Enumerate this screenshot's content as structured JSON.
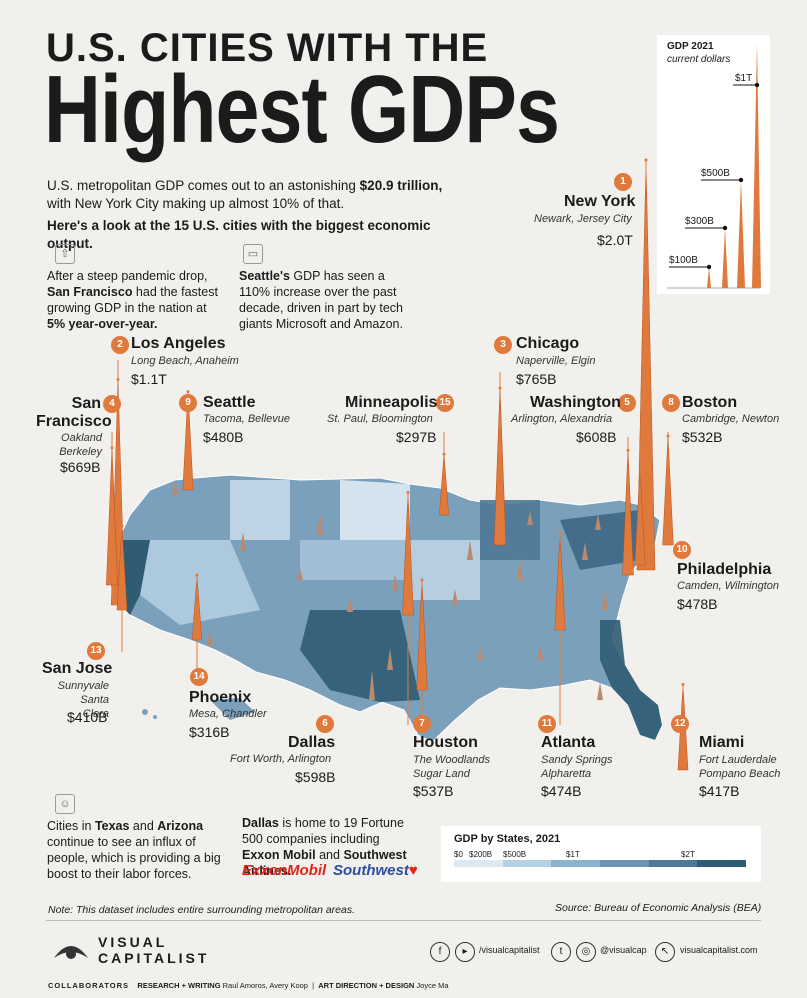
{
  "title": {
    "line1": "U.S. CITIES WITH THE",
    "line2": "Highest GDPs"
  },
  "intro": {
    "p1_a": "U.S. metropolitan GDP comes out to an astonishing ",
    "p1_b": "$20.9 trillion,",
    "p1_c": "with New York City making up almost 10% of that.",
    "p2": "Here's a look at the 15 U.S. cities with the biggest economic output."
  },
  "notes": {
    "sf_a": "After a steep pandemic drop,",
    "sf_b": "San Francisco",
    "sf_c": " had the fastest growing GDP in the nation at ",
    "sf_d": "5% year-over-year.",
    "seattle_a": "Seattle's",
    "seattle_b": " GDP has seen a 110% increase over the past decade, driven in part by tech giants Microsoft and Amazon.",
    "texas_a": "Cities in ",
    "texas_b": "Texas",
    "texas_c": " and ",
    "texas_d": "Arizona",
    "texas_e": " continue to see an influx of people, which is providing a big boost to their labor forces.",
    "dallas_a": "Dallas",
    "dallas_b": " is home to 19 Fortune 500 companies including ",
    "dallas_c": "Exxon Mobil",
    "dallas_d": " and ",
    "dallas_e": "Southwest Airlines."
  },
  "logos": {
    "exxon": "ExxonMobil",
    "southwest": "Southwest"
  },
  "gdp_legend": {
    "title": "GDP 2021",
    "subtitle": "current dollars",
    "labels": [
      "$100B",
      "$300B",
      "$500B",
      "$1T"
    ]
  },
  "state_legend": {
    "title": "GDP by States, 2021",
    "ticks": [
      "$0",
      "$200B",
      "$500B",
      "$1T",
      "$2T"
    ],
    "colors": [
      "#dde9f2",
      "#b7d1e4",
      "#8fb2cc",
      "#6d93b0",
      "#4e7895",
      "#2f5c73"
    ]
  },
  "accent_color": "#e07a3c",
  "chart_data": {
    "type": "map-spikes",
    "title": "U.S. Cities with the Highest GDPs",
    "unit": "GDP 2021, current dollars",
    "cities": [
      {
        "rank": "1",
        "name": "New York",
        "sub": "Newark, Jersey City",
        "value_label": "$2.0T",
        "value": 2000
      },
      {
        "rank": "2",
        "name": "Los Angeles",
        "sub": "Long Beach, Anaheim",
        "value_label": "$1.1T",
        "value": 1100
      },
      {
        "rank": "3",
        "name": "Chicago",
        "sub": "Naperville, Elgin",
        "value_label": "$765B",
        "value": 765
      },
      {
        "rank": "4",
        "name": "San Francisco",
        "sub": "Oakland Berkeley",
        "value_label": "$669B",
        "value": 669
      },
      {
        "rank": "5",
        "name": "Washington",
        "sub": "Arlington, Alexandria",
        "value_label": "$608B",
        "value": 608
      },
      {
        "rank": "6",
        "name": "Dallas",
        "sub": "Fort Worth, Arlington",
        "value_label": "$598B",
        "value": 598
      },
      {
        "rank": "7",
        "name": "Houston",
        "sub": "The Woodlands Sugar Land",
        "value_label": "$537B",
        "value": 537
      },
      {
        "rank": "8",
        "name": "Boston",
        "sub": "Cambridge, Newton",
        "value_label": "$532B",
        "value": 532
      },
      {
        "rank": "9",
        "name": "Seattle",
        "sub": "Tacoma, Bellevue",
        "value_label": "$480B",
        "value": 480
      },
      {
        "rank": "10",
        "name": "Philadelphia",
        "sub": "Camden, Wilmington",
        "value_label": "$478B",
        "value": 478
      },
      {
        "rank": "11",
        "name": "Atlanta",
        "sub": "Sandy Springs Alpharetta",
        "value_label": "$474B",
        "value": 474
      },
      {
        "rank": "12",
        "name": "Miami",
        "sub": "Fort Lauderdale Pompano Beach",
        "value_label": "$417B",
        "value": 417
      },
      {
        "rank": "13",
        "name": "San Jose",
        "sub": "Sunnyvale Santa Clara",
        "value_label": "$410B",
        "value": 410
      },
      {
        "rank": "14",
        "name": "Phoenix",
        "sub": "Mesa, Chandler",
        "value_label": "$316B",
        "value": 316
      },
      {
        "rank": "15",
        "name": "Minneapolis",
        "sub": "St. Paul,  Bloomington",
        "value_label": "$297B",
        "value": 297
      }
    ]
  },
  "footer": {
    "note": "Note: This dataset includes entire surrounding metropolitan areas.",
    "source": "Source: Bureau of Economic Analysis (BEA)",
    "brand1": "VISUAL",
    "brand2": "CAPITALIST",
    "social1": "/visualcapitalist",
    "social2": "@visualcap",
    "social3": "visualcapitalist.com",
    "collab_label": "COLLABORATORS",
    "research_label": "RESEARCH + WRITING",
    "research_names": "Raul Amoros, Avery Koop",
    "sep": "|",
    "art_label": "ART DIRECTION + DESIGN",
    "art_names": "Joyce Ma"
  }
}
